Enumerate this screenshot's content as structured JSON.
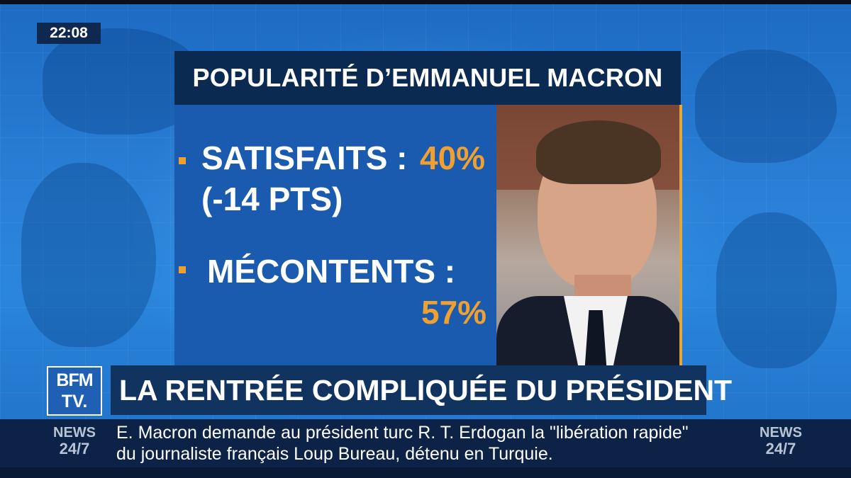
{
  "clock": "22:08",
  "graphic": {
    "title": "POPULARITÉ D’EMMANUEL MACRON",
    "stats": [
      {
        "label": "SATISFAITS :",
        "value": "40%",
        "change": "(-14 PTS)"
      },
      {
        "label": "MÉCONTENTS :",
        "value": "57%"
      }
    ]
  },
  "logo": {
    "line1": "BFM",
    "line2": "TV."
  },
  "headline": "LA RENTRÉE COMPLIQUÉE DU PRÉSIDENT",
  "ticker": {
    "badge_top": "NEWS",
    "badge_bottom": "24/7",
    "text": "E. Macron demande au président turc R. T. Erdogan la \"libération rapide\" du journaliste français Loup Bureau, détenu en Turquie."
  },
  "colors": {
    "accent": "#f0a030",
    "panel": "#1a5aaf",
    "title_bg": "#0b2a52",
    "headline_bg": "#113360"
  }
}
